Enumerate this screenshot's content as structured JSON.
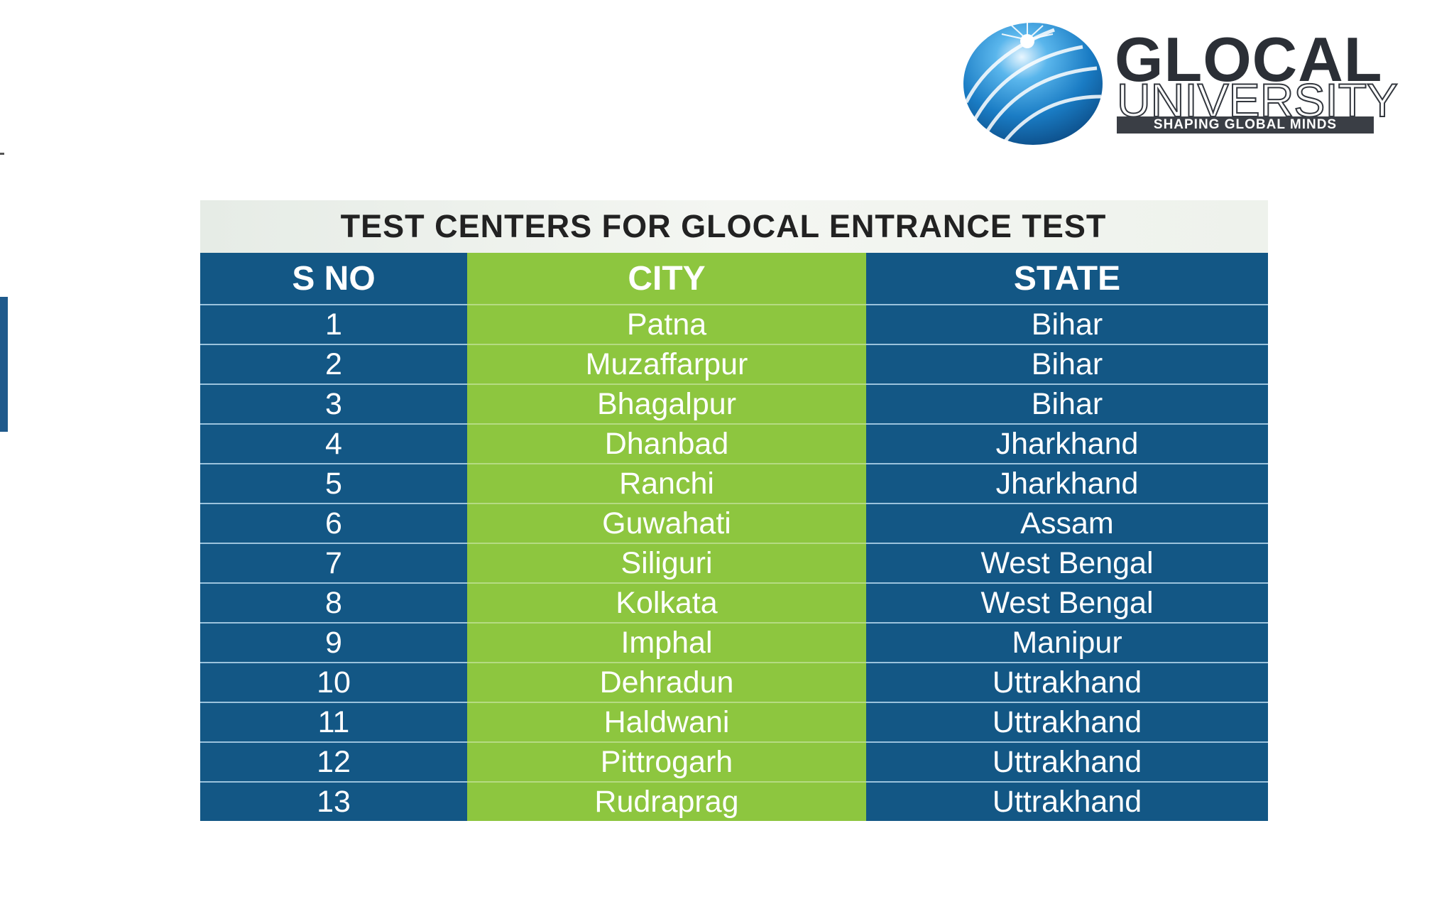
{
  "logo": {
    "name": "GLOCAL",
    "sub": "UNIVERSITY",
    "tagline": "SHAPING GLOBAL MINDS"
  },
  "table": {
    "title": "TEST CENTERS FOR GLOCAL ENTRANCE TEST",
    "headers": [
      "S NO",
      "CITY",
      "STATE"
    ],
    "rows": [
      {
        "sno": "1",
        "city": "Patna",
        "state": "Bihar"
      },
      {
        "sno": "2",
        "city": "Muzaffarpur",
        "state": "Bihar"
      },
      {
        "sno": "3",
        "city": "Bhagalpur",
        "state": "Bihar"
      },
      {
        "sno": "4",
        "city": "Dhanbad",
        "state": "Jharkhand"
      },
      {
        "sno": "5",
        "city": "Ranchi",
        "state": "Jharkhand"
      },
      {
        "sno": "6",
        "city": "Guwahati",
        "state": "Assam"
      },
      {
        "sno": "7",
        "city": "Siliguri",
        "state": "West Bengal"
      },
      {
        "sno": "8",
        "city": "Kolkata",
        "state": "West Bengal"
      },
      {
        "sno": "9",
        "city": "Imphal",
        "state": "Manipur"
      },
      {
        "sno": "10",
        "city": "Dehradun",
        "state": "Uttrakhand"
      },
      {
        "sno": "11",
        "city": "Haldwani",
        "state": "Uttrakhand"
      },
      {
        "sno": "12",
        "city": "Pittrogarh",
        "state": "Uttrakhand"
      },
      {
        "sno": "13",
        "city": "Rudraprag",
        "state": "Uttrakhand"
      }
    ]
  },
  "colors": {
    "blue_column": "#135785",
    "green_column": "#8dc63f",
    "title_band": "#eef2ec"
  },
  "icons": {
    "logo_mark": "globe-icon"
  }
}
